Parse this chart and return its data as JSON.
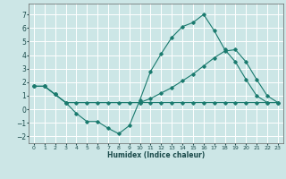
{
  "xlabel": "Humidex (Indice chaleur)",
  "background_color": "#cce6e6",
  "grid_color": "#ffffff",
  "line_color": "#1a7a6e",
  "ylim": [
    -2.5,
    7.8
  ],
  "xlim": [
    -0.5,
    23.5
  ],
  "yticks": [
    -2,
    -1,
    0,
    1,
    2,
    3,
    4,
    5,
    6,
    7
  ],
  "xticks": [
    0,
    1,
    2,
    3,
    4,
    5,
    6,
    7,
    8,
    9,
    10,
    11,
    12,
    13,
    14,
    15,
    16,
    17,
    18,
    19,
    20,
    21,
    22,
    23
  ],
  "line1_x": [
    0,
    1,
    2,
    3,
    4,
    5,
    6,
    7,
    8,
    9,
    10,
    11,
    12,
    13,
    14,
    15,
    16,
    17,
    18,
    19,
    20,
    21,
    22,
    23
  ],
  "line1_y": [
    1.7,
    1.7,
    1.1,
    0.5,
    -0.3,
    -0.9,
    -0.9,
    -1.4,
    -1.8,
    -1.2,
    0.7,
    2.8,
    4.1,
    5.3,
    6.1,
    6.4,
    7.0,
    5.8,
    4.4,
    3.5,
    2.2,
    1.0,
    0.5,
    0.5
  ],
  "line2_x": [
    0,
    1,
    2,
    3,
    4,
    5,
    6,
    7,
    8,
    9,
    10,
    11,
    12,
    13,
    14,
    15,
    16,
    17,
    18,
    19,
    20,
    21,
    22,
    23
  ],
  "line2_y": [
    1.7,
    1.7,
    1.1,
    0.5,
    0.5,
    0.5,
    0.5,
    0.5,
    0.5,
    0.5,
    0.5,
    0.5,
    0.5,
    0.5,
    0.5,
    0.5,
    0.5,
    0.5,
    0.5,
    0.5,
    0.5,
    0.5,
    0.5,
    0.5
  ],
  "line3_x": [
    0,
    1,
    2,
    3,
    10,
    11,
    12,
    13,
    14,
    15,
    16,
    17,
    18,
    19,
    20,
    21,
    22,
    23
  ],
  "line3_y": [
    1.7,
    1.7,
    1.1,
    0.5,
    0.5,
    0.8,
    1.2,
    1.6,
    2.1,
    2.6,
    3.2,
    3.8,
    4.3,
    4.4,
    3.5,
    2.2,
    1.0,
    0.5
  ]
}
